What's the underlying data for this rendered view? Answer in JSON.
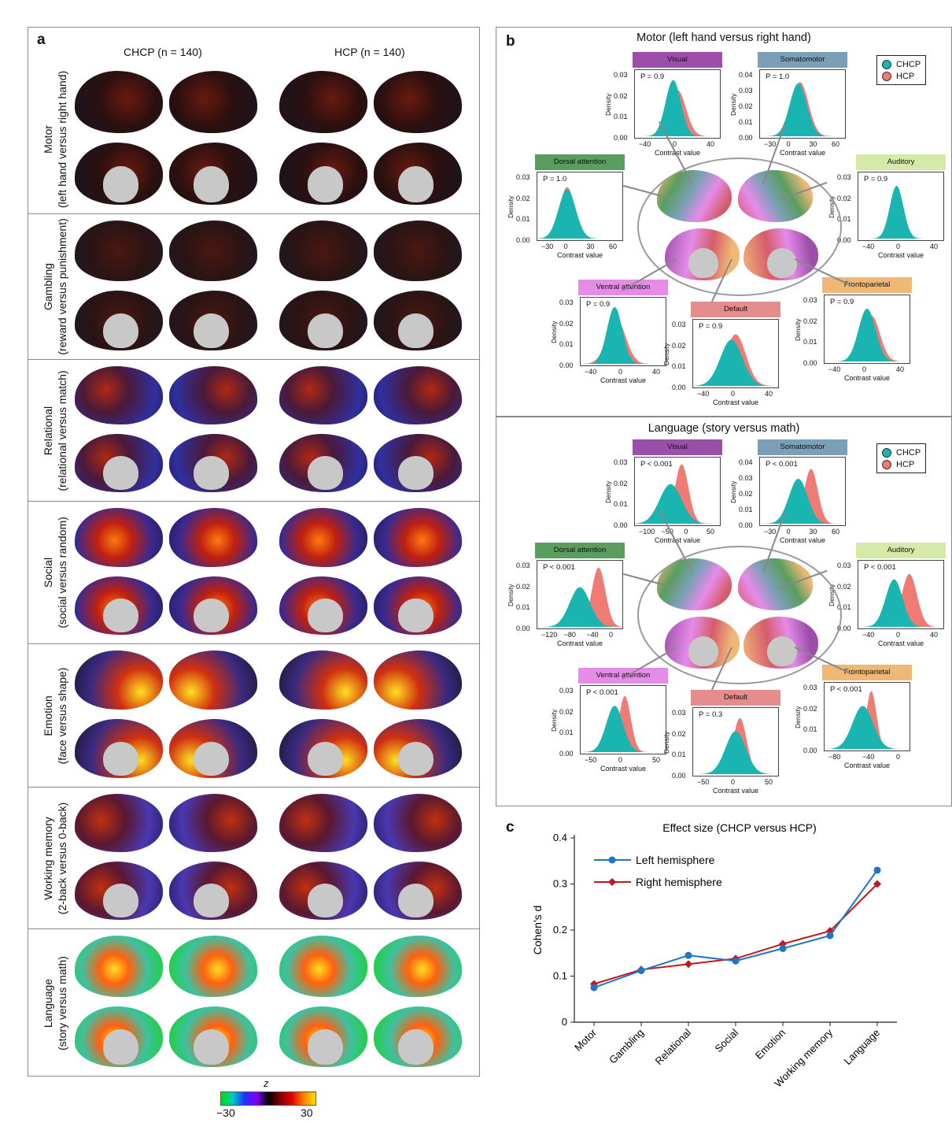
{
  "panel_a": {
    "tag": "a",
    "col_chcp": "CHCP (n = 140)",
    "col_hcp": "HCP (n = 140)",
    "rows": [
      {
        "label1": "Motor",
        "label2": "(left hand versus right hand)"
      },
      {
        "label1": "Gambling",
        "label2": "(reward versus punishment)"
      },
      {
        "label1": "Relational",
        "label2": "(relational versus match)"
      },
      {
        "label1": "Social",
        "label2": "(social versus random)"
      },
      {
        "label1": "Emotion",
        "label2": "(face versus shape)"
      },
      {
        "label1": "Working memory",
        "label2": "(2-back versus 0-back)"
      },
      {
        "label1": "Language",
        "label2": "(story versus math)"
      }
    ],
    "colorbar": {
      "label": "z",
      "min": "−30",
      "max": "30"
    }
  },
  "panel_b": {
    "tag": "b",
    "legend": {
      "chcp": "CHCP",
      "hcp": "HCP"
    },
    "colors": {
      "chcp": "#1ab5b0",
      "hcp": "#f07a74"
    },
    "x_label": "Contrast value",
    "y_label": "Density",
    "motor": {
      "title": "Motor (left hand versus right hand)",
      "networks": [
        {
          "name": "Visual",
          "p": "P = 0.9",
          "color": "#9b4fa9",
          "yticks": [
            "0.03",
            "0.02",
            "0.01",
            "0.00"
          ],
          "xticks": [
            "−40",
            "0",
            "40"
          ]
        },
        {
          "name": "Somatomotor",
          "p": "P = 1.0",
          "color": "#7b9fb6",
          "yticks": [
            "0.04",
            "0.03",
            "0.02",
            "0.01",
            "0.00"
          ],
          "xticks": [
            "−30",
            "0",
            "30",
            "60"
          ]
        },
        {
          "name": "Dorsal attention",
          "p": "P = 1.0",
          "color": "#5a9e5f",
          "yticks": [
            "0.03",
            "0.02",
            "0.01",
            "0.00"
          ],
          "xticks": [
            "−30",
            "0",
            "30",
            "60"
          ]
        },
        {
          "name": "Auditory",
          "p": "P = 0.9",
          "color": "#d5eaa8",
          "yticks": [
            "0.03",
            "0.02",
            "0.01",
            "0.00"
          ],
          "xticks": [
            "−40",
            "0",
            "40"
          ]
        },
        {
          "name": "Ventral attention",
          "p": "P = 0.9",
          "color": "#e58be8",
          "yticks": [
            "0.03",
            "0.02",
            "0.01",
            "0.00"
          ],
          "xticks": [
            "−40",
            "0",
            "40"
          ]
        },
        {
          "name": "Default",
          "p": "P = 0.9",
          "color": "#e58c8c",
          "yticks": [
            "0.03",
            "0.02",
            "0.01",
            "0.00"
          ],
          "xticks": [
            "−40",
            "0",
            "40"
          ]
        },
        {
          "name": "Frontoparietal",
          "p": "P = 0.9",
          "color": "#f0b877",
          "yticks": [
            "0.03",
            "0.02",
            "0.01",
            "0.00"
          ],
          "xticks": [
            "−40",
            "0",
            "40"
          ]
        }
      ]
    },
    "language": {
      "title": "Language (story versus math)",
      "networks": [
        {
          "name": "Visual",
          "p": "P < 0.001",
          "color": "#9b4fa9",
          "yticks": [
            "0.03",
            "0.02",
            "0.01",
            "0.00"
          ],
          "xticks": [
            "−100",
            "−50",
            "0",
            "50"
          ]
        },
        {
          "name": "Somatomotor",
          "p": "P < 0.001",
          "color": "#7b9fb6",
          "yticks": [
            "0.04",
            "0.03",
            "0.02",
            "0.01",
            "0.00"
          ],
          "xticks": [
            "−30",
            "0",
            "30",
            "60"
          ]
        },
        {
          "name": "Dorsal attention",
          "p": "P < 0.001",
          "color": "#5a9e5f",
          "yticks": [
            "0.03",
            "0.02",
            "0.01",
            "0.00"
          ],
          "xticks": [
            "−120",
            "−80",
            "−40",
            "0"
          ]
        },
        {
          "name": "Auditory",
          "p": "P < 0.001",
          "color": "#d5eaa8",
          "yticks": [
            "0.03",
            "0.02",
            "0.01",
            "0.00"
          ],
          "xticks": [
            "−40",
            "0",
            "40"
          ]
        },
        {
          "name": "Ventral attention",
          "p": "P < 0.001",
          "color": "#e58be8",
          "yticks": [
            "0.03",
            "0.02",
            "0.01",
            "0.00"
          ],
          "xticks": [
            "−50",
            "0",
            "50"
          ]
        },
        {
          "name": "Default",
          "p": "P = 0.3",
          "color": "#e58c8c",
          "yticks": [
            "0.03",
            "0.02",
            "0.01",
            "0.00"
          ],
          "xticks": [
            "−50",
            "0",
            "50"
          ]
        },
        {
          "name": "Frontoparietal",
          "p": "P < 0.001",
          "color": "#f0b877",
          "yticks": [
            "0.03",
            "0.02",
            "0.01",
            "0.00"
          ],
          "xticks": [
            "−80",
            "−40",
            "0"
          ]
        }
      ]
    }
  },
  "panel_c": {
    "tag": "c",
    "chart_data": {
      "type": "line",
      "title": "Effect size (CHCP versus HCP)",
      "ylabel": "Cohen's d",
      "xlabel": "",
      "categories": [
        "Motor",
        "Gambling",
        "Relational",
        "Social",
        "Emotion",
        "Working memory",
        "Language"
      ],
      "ylim": [
        0,
        0.4
      ],
      "yticks": [
        "0",
        "0.1",
        "0.2",
        "0.3",
        "0.4"
      ],
      "legend_position": "top-left",
      "series": [
        {
          "name": "Left hemisphere",
          "color": "#1f77c4",
          "values": [
            0.075,
            0.112,
            0.145,
            0.133,
            0.16,
            0.188,
            0.33
          ]
        },
        {
          "name": "Right hemisphere",
          "color": "#c0181e",
          "values": [
            0.083,
            0.114,
            0.126,
            0.138,
            0.17,
            0.198,
            0.3
          ]
        }
      ]
    }
  }
}
